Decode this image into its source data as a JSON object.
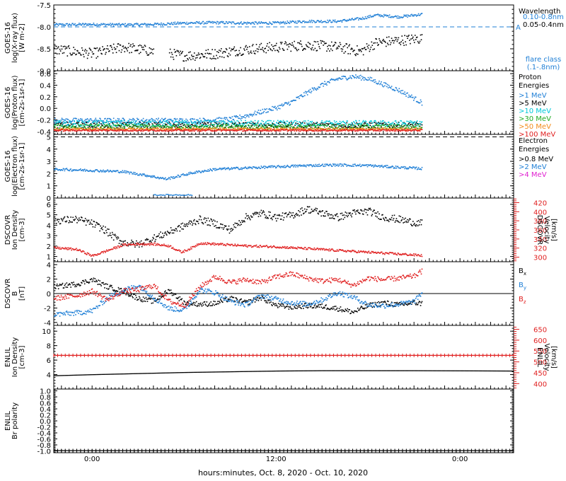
{
  "colors": {
    "black": "#000000",
    "blue": "#1f7fd6",
    "cyan": "#00c8d8",
    "green": "#22aa22",
    "orange": "#f28c1c",
    "red": "#e02020",
    "magenta": "#e020d0"
  },
  "x_axis": {
    "label": "hours:minutes, Oct.  8, 2020 - Oct. 10, 2020",
    "range_hours": [
      -2.5,
      27.5
    ],
    "ticks": [
      {
        "v": 0,
        "label": "0:00"
      },
      {
        "v": 12,
        "label": "12:00"
      },
      {
        "v": 24,
        "label": "0:00"
      }
    ],
    "data_end_hours": 21.5
  },
  "chart_data": [
    {
      "id": "xray",
      "type": "scatter",
      "ylabel": [
        "GOES-16",
        "log(X-ray flux)",
        "[W m-2]"
      ],
      "ylim": [
        -9.0,
        -7.5
      ],
      "yticks": [
        -9.0,
        -8.5,
        -8.0,
        -7.5
      ],
      "ytick_labels": [
        "-9.0",
        "-8.5",
        "-8.0",
        "-7.5"
      ],
      "reference_line": {
        "y": -8.0,
        "label": "A"
      },
      "legend_title": "Wavelength",
      "legend": [
        {
          "name": "0.10-0.8nm",
          "color": "blue"
        },
        {
          "name": "0.05-0.4nm",
          "color": "black"
        }
      ],
      "note": [
        "flare class",
        "(.1-.8nm)"
      ],
      "series": [
        {
          "name": "0.10-0.8nm",
          "color": "blue",
          "x": [
            -2.5,
            0,
            2,
            4,
            6,
            8,
            10,
            12,
            14,
            16,
            17.5,
            18.5,
            20,
            21.5
          ],
          "values": [
            -7.94,
            -7.93,
            -7.94,
            -7.93,
            -7.9,
            -7.89,
            -7.9,
            -7.9,
            -7.86,
            -7.86,
            -7.8,
            -7.72,
            -7.76,
            -7.7
          ],
          "jitter": 0.03,
          "gaps": []
        },
        {
          "name": "0.05-0.4nm",
          "color": "black",
          "x": [
            -2.5,
            0,
            2,
            4,
            6,
            8,
            10,
            12,
            14,
            16,
            17.5,
            18.5,
            20,
            21.5
          ],
          "values": [
            -8.5,
            -8.6,
            -8.45,
            -8.55,
            -8.65,
            -8.6,
            -8.5,
            -8.45,
            -8.4,
            -8.45,
            -8.55,
            -8.35,
            -8.3,
            -8.25
          ],
          "jitter": 0.12,
          "gaps": [
            [
              4.0,
              5.0
            ]
          ]
        }
      ]
    },
    {
      "id": "proton",
      "type": "scatter",
      "ylabel": [
        "GOES-16",
        "log(Proton flux)",
        "[cm-2s-1sr-1]"
      ],
      "ylim": [
        -0.45,
        0.65
      ],
      "yticks": [
        -0.4,
        -0.2,
        0.0,
        0.2,
        0.4,
        0.6
      ],
      "ytick_labels": [
        "-0.4",
        "-0.2",
        "0.0",
        "0.2",
        "0.4",
        "0.6"
      ],
      "legend_title": "Proton Energies",
      "legend": [
        {
          "name": ">1 MeV",
          "color": "blue"
        },
        {
          "name": ">5 MeV",
          "color": "black"
        },
        {
          "name": ">10 MeV",
          "color": "cyan"
        },
        {
          "name": ">30 MeV",
          "color": "green"
        },
        {
          "name": ">50 MeV",
          "color": "orange"
        },
        {
          "name": ">100 MeV",
          "color": "red"
        }
      ],
      "series": [
        {
          "name": ">1 MeV",
          "color": "blue",
          "x": [
            -2.5,
            4,
            7,
            9,
            10,
            11,
            12,
            13,
            14,
            15,
            16,
            17,
            18,
            19,
            20,
            21,
            21.5
          ],
          "values": [
            -0.2,
            -0.2,
            -0.2,
            -0.18,
            -0.12,
            -0.05,
            0.02,
            0.12,
            0.28,
            0.42,
            0.52,
            0.56,
            0.52,
            0.42,
            0.32,
            0.18,
            0.1
          ],
          "jitter": 0.04,
          "gaps": []
        },
        {
          "name": ">5 MeV",
          "color": "black",
          "x": [
            -2.5,
            21.5
          ],
          "values": [
            -0.28,
            -0.28
          ],
          "jitter": 0.05,
          "gaps": []
        },
        {
          "name": ">10 MeV",
          "color": "cyan",
          "x": [
            -2.5,
            21.5
          ],
          "values": [
            -0.25,
            -0.25
          ],
          "jitter": 0.05,
          "gaps": []
        },
        {
          "name": ">30 MeV",
          "color": "green",
          "x": [
            -2.5,
            21.5
          ],
          "values": [
            -0.31,
            -0.31
          ],
          "jitter": 0.04,
          "gaps": []
        },
        {
          "name": ">50 MeV",
          "color": "orange",
          "x": [
            -2.5,
            21.5
          ],
          "values": [
            -0.35,
            -0.35
          ],
          "jitter": 0.02,
          "gaps": []
        },
        {
          "name": ">100 MeV",
          "color": "red",
          "x": [
            -2.5,
            21.5
          ],
          "values": [
            -0.37,
            -0.37
          ],
          "jitter": 0.015,
          "gaps": []
        }
      ]
    },
    {
      "id": "electron",
      "type": "scatter",
      "ylabel": [
        "GOES-16",
        "log(Electron flux)",
        "[cm-2s-1sr-1]"
      ],
      "ylim": [
        0.0,
        5.2
      ],
      "yticks": [
        0,
        1,
        2,
        3,
        4,
        5
      ],
      "ytick_labels": [
        "0",
        "1",
        "2",
        "3",
        "4",
        "5"
      ],
      "reference_line": {
        "y": 5.0,
        "label": ""
      },
      "legend_title": "Electron Energies",
      "legend": [
        {
          "name": ">0.8 MeV",
          "color": "black"
        },
        {
          "name": ">2 MeV",
          "color": "blue"
        },
        {
          "name": ">4 MeV",
          "color": "magenta"
        }
      ],
      "series": [
        {
          "name": ">2 MeV",
          "color": "blue",
          "x": [
            -2.5,
            0,
            2,
            3.5,
            4.8,
            5.5,
            6.5,
            8,
            10,
            12,
            14,
            16,
            18,
            20,
            21.5
          ],
          "values": [
            2.4,
            2.3,
            2.2,
            1.9,
            1.6,
            1.8,
            2.1,
            2.4,
            2.5,
            2.6,
            2.7,
            2.75,
            2.7,
            2.55,
            2.45
          ],
          "jitter": 0.1,
          "gaps": []
        },
        {
          "name": ">2 MeV (dropout)",
          "color": "blue",
          "x": [
            4.0,
            6.5
          ],
          "values": [
            0.3,
            0.3
          ],
          "jitter": 0.05,
          "gaps": []
        }
      ]
    },
    {
      "id": "dscovr_density",
      "type": "scatter",
      "ylabel": [
        "DSCOVR",
        "Ion Density",
        "[cm-3]"
      ],
      "ylim": [
        0.5,
        6.6
      ],
      "yticks": [
        1,
        2,
        3,
        4,
        5,
        6
      ],
      "ytick_labels": [
        "1",
        "2",
        "3",
        "4",
        "5",
        "6"
      ],
      "right_axis": {
        "label": [
          "DSCOVR",
          "Velocity",
          "[km/s]"
        ],
        "ylim": [
          290,
          430
        ],
        "yticks": [
          300,
          320,
          340,
          360,
          380,
          400,
          420
        ],
        "ytick_labels": [
          "300",
          "320",
          "340",
          "360",
          "380",
          "400",
          "420"
        ],
        "color": "red"
      },
      "series": [
        {
          "name": "Density",
          "color": "black",
          "x": [
            -2.5,
            -1,
            0,
            0.8,
            1.5,
            2,
            3,
            4,
            5,
            6,
            7,
            8,
            9,
            10,
            11,
            12,
            13,
            14,
            15,
            16,
            17,
            18,
            19,
            20,
            21,
            21.5
          ],
          "values": [
            4.5,
            4.6,
            4.2,
            3.6,
            2.8,
            2.4,
            2.2,
            2.8,
            3.4,
            4.0,
            4.6,
            4.2,
            3.6,
            4.8,
            5.2,
            4.8,
            5.0,
            5.6,
            5.2,
            4.8,
            5.2,
            5.4,
            4.8,
            4.6,
            4.3,
            4.2
          ],
          "jitter": 0.35,
          "gaps": []
        },
        {
          "name": "Velocity",
          "color": "red",
          "axis": "right",
          "x": [
            -2.5,
            -1,
            0,
            1,
            2,
            3,
            4,
            5,
            5.8,
            6.5,
            7,
            8,
            10,
            12,
            14,
            16,
            18,
            20,
            21.5
          ],
          "values": [
            322,
            318,
            304,
            316,
            328,
            330,
            330,
            326,
            312,
            322,
            332,
            330,
            326,
            324,
            320,
            316,
            312,
            308,
            305
          ],
          "jitter": 2.5,
          "gaps": []
        }
      ]
    },
    {
      "id": "dscovr_b",
      "type": "scatter",
      "ylabel": [
        "DSCOVR",
        "B",
        "[nT]"
      ],
      "ylim": [
        -4.4,
        4.4
      ],
      "yticks": [
        -4,
        -2,
        0,
        2,
        4
      ],
      "ytick_labels": [
        "-4",
        "-2",
        "0",
        "2",
        "4"
      ],
      "zero_line": true,
      "legend": [
        {
          "name": "Bx",
          "color": "black"
        },
        {
          "name": "By",
          "color": "blue"
        },
        {
          "name": "Bz",
          "color": "red"
        }
      ],
      "series": [
        {
          "name": "Bx",
          "color": "black",
          "x": [
            -2.5,
            -1,
            0,
            1,
            2,
            3,
            4,
            5,
            6,
            7,
            8,
            9,
            10,
            11,
            12,
            13,
            14,
            15,
            16,
            17,
            18,
            19,
            20,
            21,
            21.5
          ],
          "values": [
            1.0,
            1.4,
            2.0,
            1.0,
            0.4,
            -0.6,
            -1.0,
            0.5,
            -1.2,
            -1.4,
            -1.3,
            -0.6,
            -1.2,
            -0.5,
            -1.6,
            -1.8,
            -1.6,
            -1.7,
            -2.0,
            -2.5,
            -1.6,
            -1.2,
            -1.5,
            -1.2,
            -1.3
          ],
          "jitter": 0.35,
          "gaps": []
        },
        {
          "name": "By",
          "color": "blue",
          "x": [
            -2.5,
            -1,
            0,
            1,
            2,
            3,
            4,
            5,
            6,
            7,
            8,
            9,
            10,
            11,
            12,
            13,
            14,
            15,
            16,
            17,
            18,
            19,
            20,
            21,
            21.5
          ],
          "values": [
            -2.8,
            -2.6,
            -2.3,
            -0.5,
            0.5,
            1.2,
            -0.5,
            -2.0,
            -2.2,
            0.6,
            0.2,
            -1.0,
            -1.5,
            -0.2,
            -0.7,
            -1.2,
            -1.4,
            -0.8,
            0.2,
            -0.4,
            -1.5,
            -1.6,
            -1.4,
            -1.0,
            0.2
          ],
          "jitter": 0.35,
          "gaps": []
        },
        {
          "name": "Bz",
          "color": "red",
          "x": [
            -2.5,
            -1,
            0,
            1,
            2,
            3,
            4,
            5,
            6,
            7,
            8,
            9,
            10,
            11,
            12,
            13,
            14,
            15,
            16,
            17,
            18,
            19,
            20,
            21,
            21.5
          ],
          "values": [
            -0.6,
            -0.2,
            0.4,
            -0.8,
            0.4,
            0.6,
            1.2,
            -1.0,
            -1.6,
            1.0,
            2.4,
            1.6,
            2.0,
            1.6,
            2.4,
            2.8,
            2.2,
            1.8,
            2.0,
            1.2,
            2.2,
            2.0,
            2.2,
            2.5,
            3.2
          ],
          "jitter": 0.35,
          "gaps": []
        }
      ]
    },
    {
      "id": "enlil_density",
      "type": "line",
      "ylabel": [
        "ENLIL",
        "Ion Density",
        "[cm-3]"
      ],
      "ylim": [
        2.0,
        10.8
      ],
      "yticks": [
        4,
        6,
        8,
        10
      ],
      "ytick_labels": [
        "4",
        "6",
        "8",
        "10"
      ],
      "right_axis": {
        "label": [
          "ENLIL",
          "Velocity",
          "[km/s]"
        ],
        "ylim": [
          375,
          668
        ],
        "yticks": [
          400,
          450,
          500,
          550,
          600,
          650
        ],
        "ytick_labels": [
          "400",
          "450",
          "500",
          "550",
          "600",
          "650"
        ],
        "color": "red"
      },
      "series": [
        {
          "name": "Density",
          "color": "black",
          "x": [
            -2.5,
            0,
            3,
            6,
            9,
            12,
            15,
            18,
            21,
            24,
            27.5
          ],
          "values": [
            3.9,
            4.05,
            4.2,
            4.35,
            4.45,
            4.55,
            4.6,
            4.6,
            4.6,
            4.58,
            4.55
          ],
          "jitter": 0.0,
          "gaps": []
        },
        {
          "name": "Velocity",
          "color": "red",
          "axis": "right",
          "x": [
            -2.5,
            27.5
          ],
          "values": [
            530,
            530
          ],
          "jitter": 0.0,
          "gaps": []
        }
      ]
    },
    {
      "id": "enlil_polarity",
      "type": "line",
      "ylabel": [
        "ENLIL",
        "Br polarity"
      ],
      "ylim": [
        -1.06,
        1.06
      ],
      "yticks": [
        -1.0,
        -0.8,
        -0.6,
        -0.4,
        -0.2,
        0.0,
        0.2,
        0.4,
        0.6,
        0.8,
        1.0
      ],
      "ytick_labels": [
        "-1.0",
        "-0.8",
        "-0.6",
        "-0.4",
        "-0.2",
        "0.0",
        "0.2",
        "0.4",
        "0.6",
        "0.8",
        "1.0"
      ],
      "series": [
        {
          "name": "Polarity",
          "color": "black",
          "x": [
            -2.5,
            27.5
          ],
          "values": [
            -0.99,
            -0.99
          ],
          "jitter": 0.0,
          "gaps": []
        }
      ]
    }
  ]
}
